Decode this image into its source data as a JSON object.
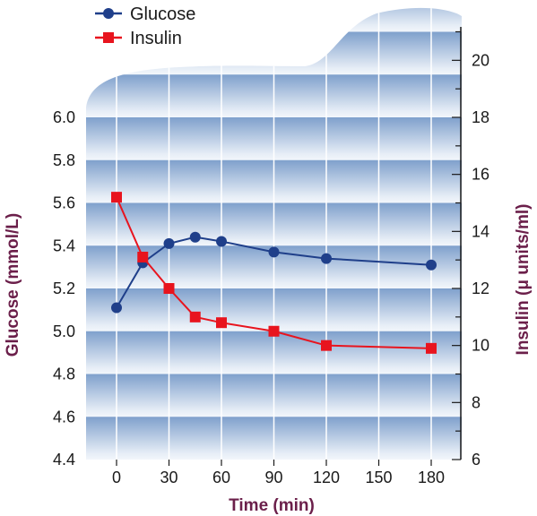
{
  "chart_data": {
    "type": "line",
    "xlabel": "Time (min)",
    "ylabel_left": "Glucose (mmol/L)",
    "ylabel_right": "Insulin (μ units/ml)",
    "xlim": [
      -15,
      195
    ],
    "x_ticks": [
      0,
      30,
      60,
      90,
      120,
      150,
      180
    ],
    "ylim_left": [
      4.4,
      6.0
    ],
    "y_ticks_left": [
      "4.4",
      "4.6",
      "4.8",
      "5.0",
      "5.2",
      "5.4",
      "5.6",
      "5.8",
      "6.0"
    ],
    "ylim_right": [
      6,
      20
    ],
    "y_ticks_right": [
      6,
      8,
      10,
      12,
      14,
      16,
      18,
      20
    ],
    "legend_position": "top-left",
    "grid": false,
    "series": [
      {
        "name": "Glucose",
        "axis": "left",
        "color": "#1f3f8a",
        "marker": "circle",
        "x": [
          0,
          15,
          30,
          45,
          60,
          90,
          120,
          180
        ],
        "y": [
          5.11,
          5.32,
          5.41,
          5.44,
          5.42,
          5.37,
          5.34,
          5.31
        ]
      },
      {
        "name": "Insulin",
        "axis": "right",
        "color": "#e8141e",
        "marker": "square",
        "x": [
          0,
          15,
          30,
          45,
          60,
          90,
          120,
          180
        ],
        "y": [
          15.2,
          13.1,
          12.0,
          11.0,
          10.8,
          10.5,
          10.0,
          9.9
        ]
      }
    ]
  }
}
